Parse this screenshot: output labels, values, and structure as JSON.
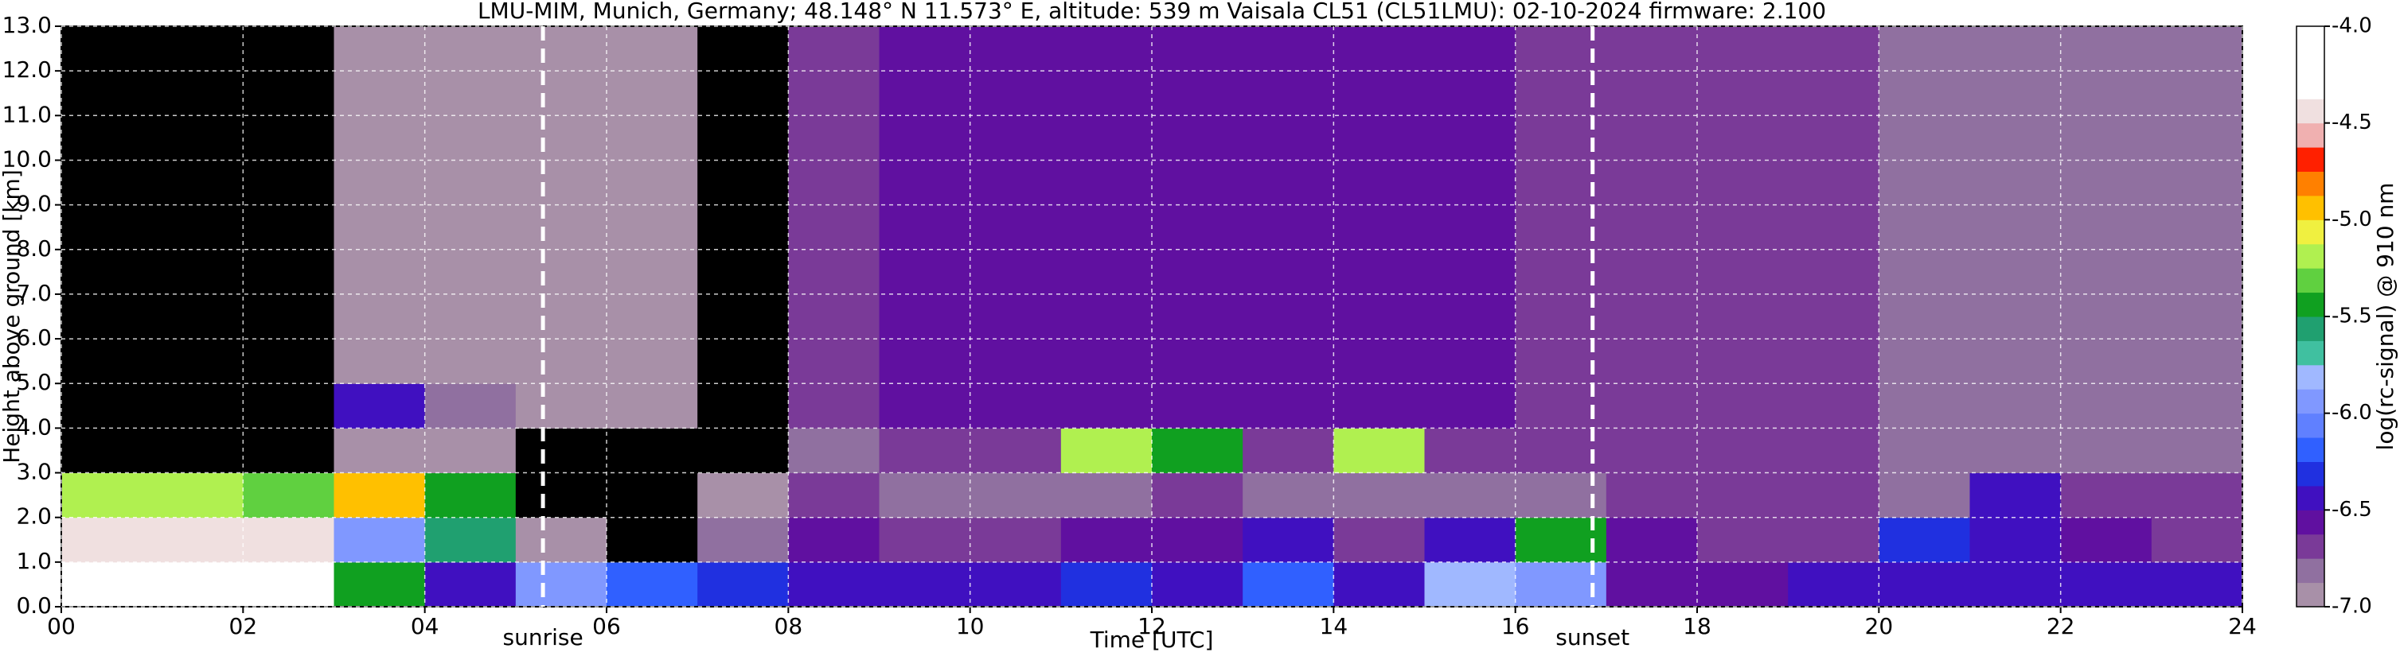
{
  "chart_data": {
    "type": "heatmap",
    "title": "LMU-MIM, Munich, Germany; 48.148° N 11.573° E, altitude: 539 m    Vaisala CL51 (CL51LMU): 02-10-2024    firmware: 2.100",
    "x_label": "Time [UTC]",
    "y_label": "Height above ground [km]",
    "colorbar_label": "log(rc-signal) @ 910 nm",
    "x": [
      0,
      1,
      2,
      3,
      4,
      5,
      6,
      7,
      8,
      9,
      10,
      11,
      12,
      13,
      14,
      15,
      16,
      17,
      18,
      19,
      20,
      21,
      22,
      23
    ],
    "y": [
      0,
      1,
      2,
      3,
      4,
      5,
      6,
      7,
      8,
      9,
      10,
      11,
      12
    ],
    "z": [
      [
        -4.3,
        -4.3,
        -4.3,
        -5.5,
        -6.4,
        -6.0,
        -6.2,
        -6.3,
        -6.4,
        -6.5,
        -6.5,
        -6.3,
        -6.4,
        -6.2,
        -6.5,
        -5.8,
        -5.9,
        -6.6,
        -6.6,
        -6.5,
        -6.4,
        -6.5,
        -6.5,
        -6.4
      ],
      [
        -4.4,
        -4.4,
        -4.5,
        -6.0,
        -5.6,
        -6.9,
        -7.2,
        -6.8,
        -6.6,
        -6.7,
        -6.7,
        -6.6,
        -6.6,
        -6.5,
        -6.7,
        -6.4,
        -5.5,
        -6.6,
        -6.7,
        -6.7,
        -6.3,
        -6.5,
        -6.6,
        -6.7
      ],
      [
        -5.2,
        -5.2,
        -5.3,
        -5.0,
        -5.5,
        -7.2,
        -7.2,
        -7.0,
        -6.7,
        -6.8,
        -6.8,
        -6.8,
        -6.7,
        -6.8,
        -6.8,
        -6.8,
        -6.8,
        -6.7,
        -6.7,
        -6.7,
        -6.8,
        -6.4,
        -6.7,
        -6.7
      ],
      [
        -7.3,
        -7.3,
        -7.2,
        -6.9,
        -6.9,
        -7.2,
        -7.1,
        -7.1,
        -6.8,
        -6.7,
        -6.7,
        -5.2,
        -5.4,
        -6.7,
        -5.2,
        -6.7,
        -6.7,
        -6.7,
        -6.7,
        -6.7,
        -6.8,
        -6.8,
        -6.8,
        -6.8
      ],
      [
        -7.3,
        -7.3,
        -7.3,
        -6.5,
        -6.8,
        -7.0,
        -7.0,
        -7.1,
        -6.7,
        -6.6,
        -6.6,
        -6.6,
        -6.6,
        -6.6,
        -6.6,
        -6.6,
        -6.7,
        -6.7,
        -6.7,
        -6.7,
        -6.8,
        -6.8,
        -6.8,
        -6.8
      ],
      [
        -7.3,
        -7.3,
        -7.3,
        -6.9,
        -6.9,
        -7.0,
        -7.0,
        -7.1,
        -6.7,
        -6.6,
        -6.6,
        -6.6,
        -6.6,
        -6.6,
        -6.6,
        -6.6,
        -6.7,
        -6.7,
        -6.7,
        -6.7,
        -6.8,
        -6.8,
        -6.8,
        -6.8
      ],
      [
        -7.3,
        -7.3,
        -7.3,
        -6.9,
        -6.9,
        -7.0,
        -7.0,
        -7.1,
        -6.7,
        -6.6,
        -6.6,
        -6.6,
        -6.6,
        -6.6,
        -6.6,
        -6.6,
        -6.7,
        -6.7,
        -6.7,
        -6.7,
        -6.8,
        -6.8,
        -6.8,
        -6.8
      ],
      [
        -7.3,
        -7.3,
        -7.3,
        -6.9,
        -6.9,
        -7.0,
        -7.0,
        -7.1,
        -6.7,
        -6.6,
        -6.6,
        -6.6,
        -6.6,
        -6.6,
        -6.6,
        -6.6,
        -6.7,
        -6.7,
        -6.7,
        -6.7,
        -6.8,
        -6.8,
        -6.8,
        -6.8
      ],
      [
        -7.3,
        -7.3,
        -7.3,
        -6.9,
        -6.9,
        -7.0,
        -7.0,
        -7.1,
        -6.7,
        -6.6,
        -6.6,
        -6.6,
        -6.6,
        -6.6,
        -6.6,
        -6.6,
        -6.7,
        -6.7,
        -6.7,
        -6.7,
        -6.8,
        -6.8,
        -6.8,
        -6.8
      ],
      [
        -7.3,
        -7.3,
        -7.3,
        -6.9,
        -6.9,
        -7.0,
        -7.0,
        -7.1,
        -6.7,
        -6.6,
        -6.6,
        -6.6,
        -6.6,
        -6.6,
        -6.6,
        -6.6,
        -6.7,
        -6.7,
        -6.7,
        -6.7,
        -6.8,
        -6.8,
        -6.8,
        -6.8
      ],
      [
        -7.3,
        -7.3,
        -7.3,
        -6.9,
        -6.9,
        -7.0,
        -7.0,
        -7.1,
        -6.7,
        -6.6,
        -6.6,
        -6.6,
        -6.6,
        -6.6,
        -6.6,
        -6.6,
        -6.7,
        -6.7,
        -6.7,
        -6.7,
        -6.8,
        -6.8,
        -6.8,
        -6.8
      ],
      [
        -7.3,
        -7.3,
        -7.3,
        -6.9,
        -6.9,
        -7.0,
        -7.0,
        -7.1,
        -6.7,
        -6.6,
        -6.6,
        -6.6,
        -6.6,
        -6.6,
        -6.6,
        -6.6,
        -6.7,
        -6.7,
        -6.7,
        -6.7,
        -6.8,
        -6.8,
        -6.8,
        -6.8
      ],
      [
        -7.3,
        -7.3,
        -7.3,
        -6.9,
        -6.9,
        -7.0,
        -7.0,
        -7.1,
        -6.7,
        -6.6,
        -6.6,
        -6.6,
        -6.6,
        -6.6,
        -6.6,
        -6.6,
        -6.7,
        -6.7,
        -6.7,
        -6.7,
        -6.8,
        -6.8,
        -6.8,
        -6.8
      ]
    ],
    "xlim": [
      0,
      24
    ],
    "ylim": [
      0,
      13
    ],
    "xticks": [
      {
        "value": 0,
        "label": "00"
      },
      {
        "value": 2,
        "label": "02"
      },
      {
        "value": 4,
        "label": "04"
      },
      {
        "value": 6,
        "label": "06"
      },
      {
        "value": 8,
        "label": "08"
      },
      {
        "value": 10,
        "label": "10"
      },
      {
        "value": 12,
        "label": "12"
      },
      {
        "value": 14,
        "label": "14"
      },
      {
        "value": 16,
        "label": "16"
      },
      {
        "value": 18,
        "label": "18"
      },
      {
        "value": 20,
        "label": "20"
      },
      {
        "value": 22,
        "label": "22"
      },
      {
        "value": 24,
        "label": "24"
      }
    ],
    "yticks": [
      {
        "value": 0,
        "label": "0.0"
      },
      {
        "value": 1,
        "label": "1.0"
      },
      {
        "value": 2,
        "label": "2.0"
      },
      {
        "value": 3,
        "label": "3.0"
      },
      {
        "value": 4,
        "label": "4.0"
      },
      {
        "value": 5,
        "label": "5.0"
      },
      {
        "value": 6,
        "label": "6.0"
      },
      {
        "value": 7,
        "label": "7.0"
      },
      {
        "value": 8,
        "label": "8.0"
      },
      {
        "value": 9,
        "label": "9.0"
      },
      {
        "value": 10,
        "label": "10.0"
      },
      {
        "value": 11,
        "label": "11.0"
      },
      {
        "value": 12,
        "label": "12.0"
      },
      {
        "value": 13,
        "label": "13.0"
      }
    ],
    "clim": [
      -7,
      -4
    ],
    "cticks": [
      {
        "value": -7,
        "label": "-7.0"
      },
      {
        "value": -6.5,
        "label": "-6.5"
      },
      {
        "value": -6,
        "label": "-6.0"
      },
      {
        "value": -5.5,
        "label": "-5.5"
      },
      {
        "value": -5,
        "label": "-5.0"
      },
      {
        "value": -4.5,
        "label": "-4.5"
      },
      {
        "value": -4,
        "label": "-4.0"
      }
    ],
    "colormap": [
      "#a890a8",
      "#9070a0",
      "#7a3a98",
      "#6010a0",
      "#4010c0",
      "#2030e0",
      "#3060ff",
      "#6080ff",
      "#8098ff",
      "#a0b8ff",
      "#40c0a0",
      "#20a070",
      "#10a020",
      "#60d040",
      "#b0f050",
      "#f0f040",
      "#ffc000",
      "#ff8000",
      "#ff2000",
      "#f0b0b0",
      "#f0e0e0",
      "#ffffff",
      "#ffffff",
      "#ffffff"
    ],
    "under_color": "#000000",
    "grid": true,
    "annotations": [
      {
        "text": "sunrise",
        "x": 5.3
      },
      {
        "text": "sunset",
        "x": 16.85
      }
    ]
  }
}
